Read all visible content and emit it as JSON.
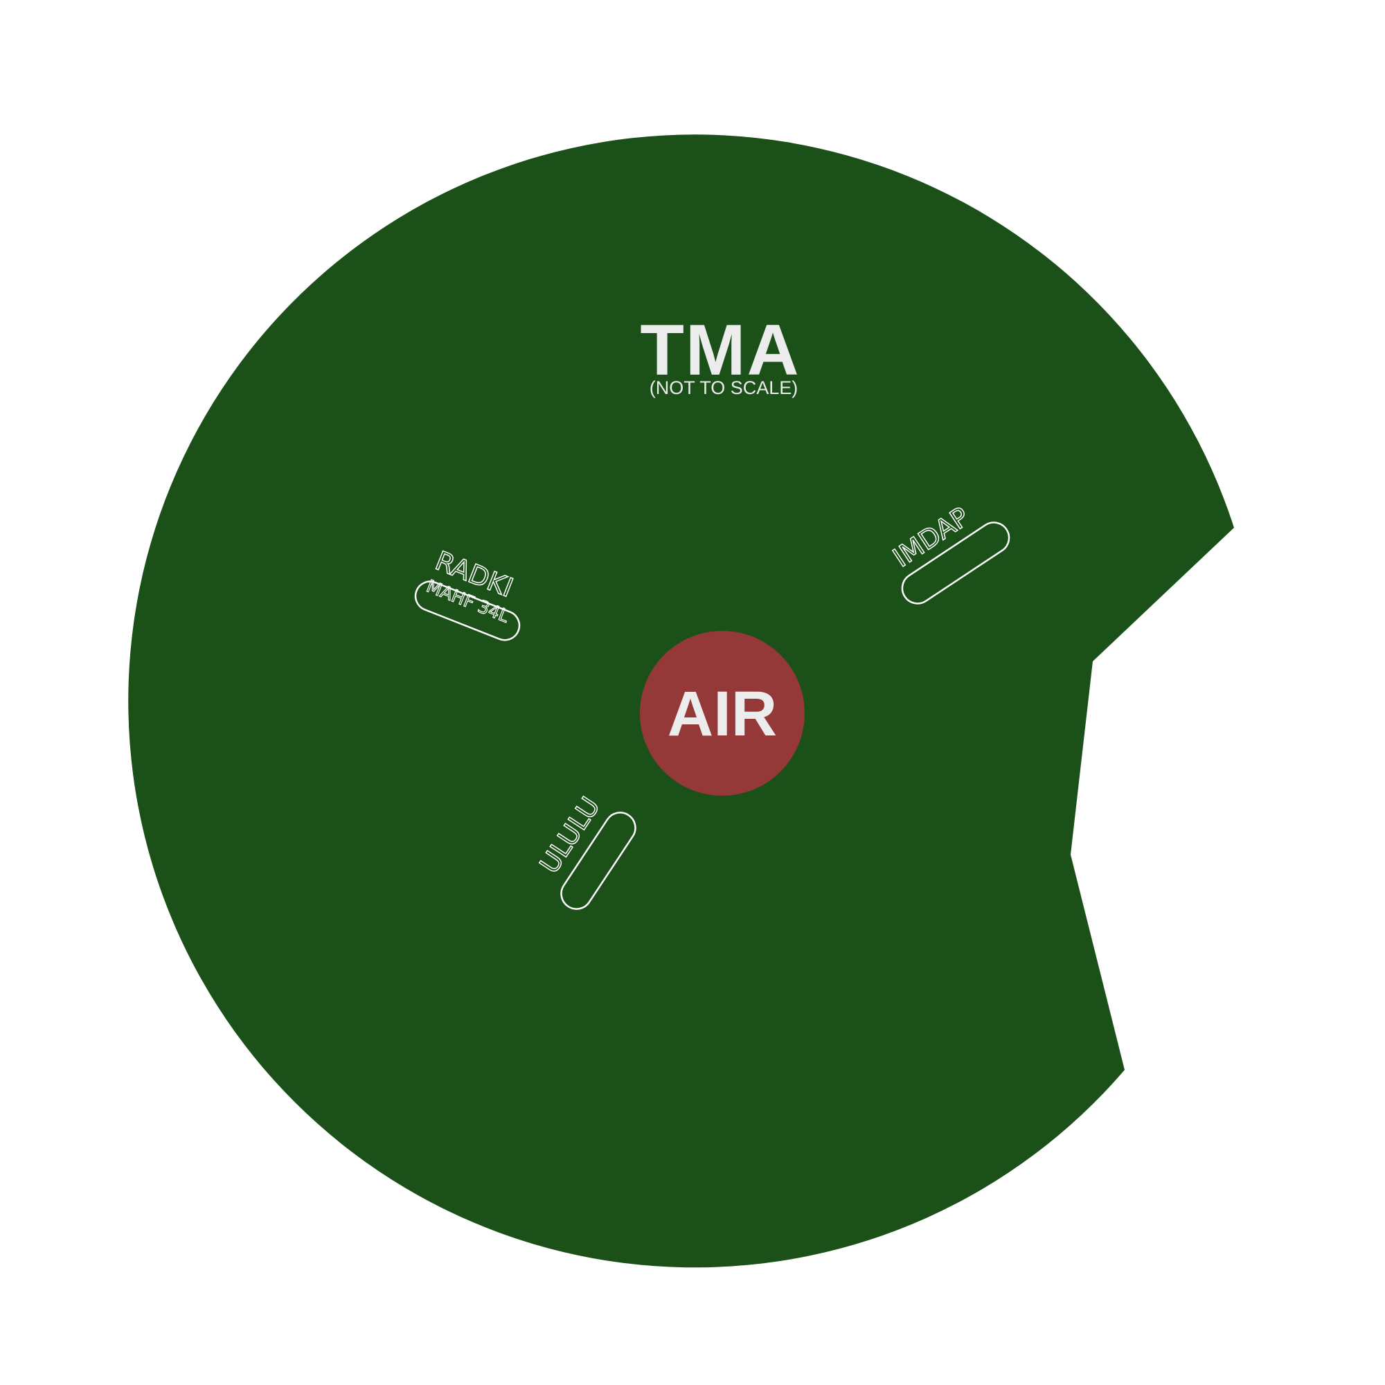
{
  "colors": {
    "background": "#ffffff",
    "tma_area": "#1b5019",
    "airport": "#943838",
    "text": "#ececec",
    "outline": "#ffffff"
  },
  "map": {
    "title": "TMA",
    "subtitle": "(NOT TO SCALE)",
    "airport_label": "AIR",
    "fixes": [
      {
        "name": "RADKI",
        "note": "MAHF 34L",
        "icon": "holding-pattern-icon"
      },
      {
        "name": "IMDAP",
        "note": "",
        "icon": "holding-pattern-icon"
      },
      {
        "name": "ULULU",
        "note": "",
        "icon": "holding-pattern-icon"
      }
    ]
  }
}
